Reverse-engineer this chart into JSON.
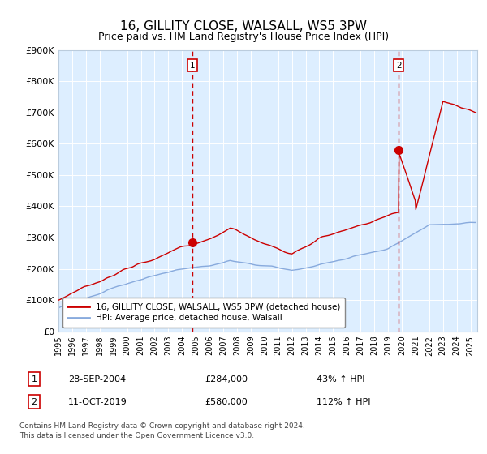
{
  "title": "16, GILLITY CLOSE, WALSALL, WS5 3PW",
  "subtitle": "Price paid vs. HM Land Registry's House Price Index (HPI)",
  "title_fontsize": 11,
  "subtitle_fontsize": 9,
  "background_color": "#ffffff",
  "plot_bg_color": "#ddeeff",
  "grid_color": "#ccddee",
  "hpi_line_color": "#88aadd",
  "price_line_color": "#cc0000",
  "dashed_line_color": "#cc0000",
  "marker_color": "#cc0000",
  "sale1_date_num": 2004.75,
  "sale1_price": 284000,
  "sale1_label": "1",
  "sale1_date_str": "28-SEP-2004",
  "sale1_pct": "43%",
  "sale2_date_num": 2019.78,
  "sale2_price": 580000,
  "sale2_label": "2",
  "sale2_date_str": "11-OCT-2019",
  "sale2_pct": "112%",
  "xmin": 1995.0,
  "xmax": 2025.5,
  "ymin": 0,
  "ymax": 900000,
  "legend_line1": "16, GILLITY CLOSE, WALSALL, WS5 3PW (detached house)",
  "legend_line2": "HPI: Average price, detached house, Walsall",
  "footer1": "Contains HM Land Registry data © Crown copyright and database right 2024.",
  "footer2": "This data is licensed under the Open Government Licence v3.0."
}
